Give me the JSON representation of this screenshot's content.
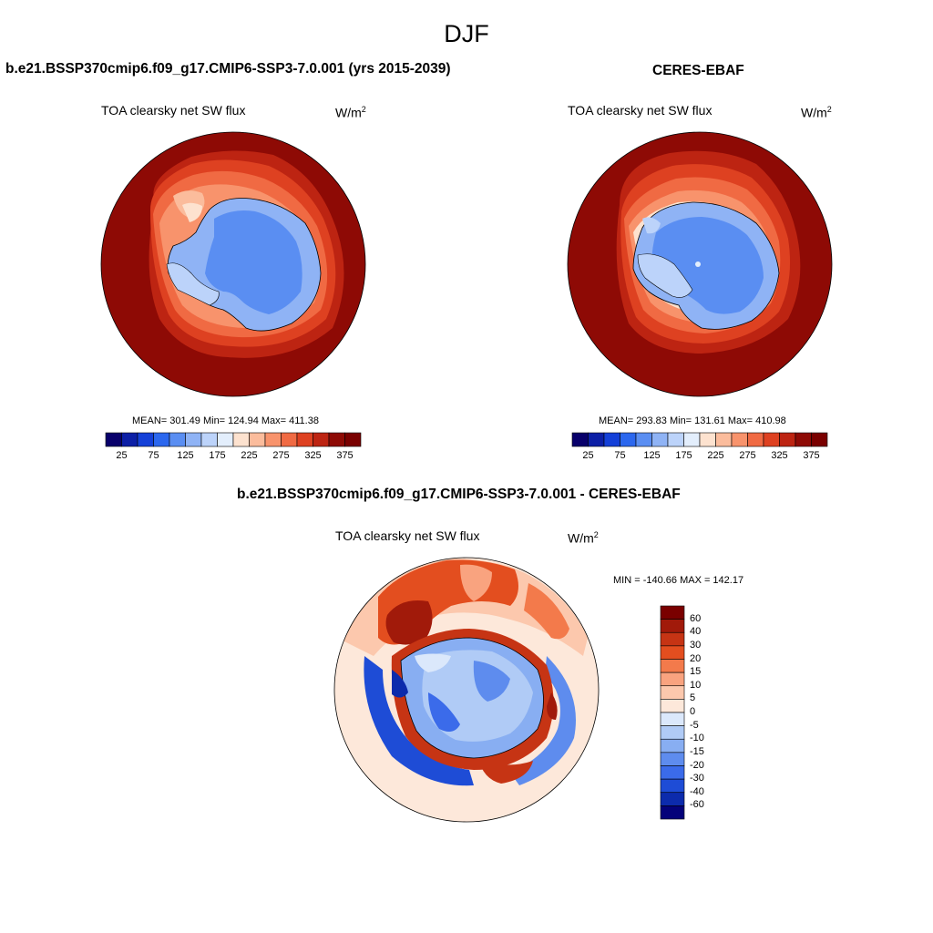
{
  "page": {
    "title": "DJF"
  },
  "panels": {
    "model": {
      "title": "b.e21.BSSP370cmip6.f09_g17.CMIP6-SSP3-7.0.001 (yrs 2015-2039)",
      "variable": "TOA clearsky net SW flux",
      "units_base": "W/m",
      "units_exp": "2",
      "stats": "MEAN= 301.49  Min= 124.94  Max= 411.38"
    },
    "obs": {
      "title": "CERES-EBAF",
      "variable": "TOA clearsky net SW flux",
      "units_base": "W/m",
      "units_exp": "2",
      "stats": "MEAN= 293.83  Min= 131.61  Max= 410.98"
    },
    "diff": {
      "title": "b.e21.BSSP370cmip6.f09_g17.CMIP6-SSP3-7.0.001 - CERES-EBAF",
      "variable": "TOA clearsky net SW flux",
      "units_base": "W/m",
      "units_exp": "2",
      "stats": "MIN = -140.66 MAX = 142.17"
    }
  },
  "chart_data": [
    {
      "type": "map",
      "projection": "south polar stereographic",
      "title": "b.e21.BSSP370cmip6.f09_g17.CMIP6-SSP3-7.0.001 (yrs 2015-2039)",
      "variable": "TOA clearsky net SW flux",
      "units": "W/m2",
      "mean": 301.49,
      "min": 124.94,
      "max": 411.38,
      "colorbar": {
        "levels": [
          25,
          50,
          75,
          100,
          125,
          150,
          175,
          200,
          225,
          250,
          275,
          300,
          325,
          350,
          375
        ],
        "tick_labels": [
          "25",
          "75",
          "125",
          "175",
          "225",
          "275",
          "325",
          "375"
        ]
      }
    },
    {
      "type": "map",
      "projection": "south polar stereographic",
      "title": "CERES-EBAF",
      "variable": "TOA clearsky net SW flux",
      "units": "W/m2",
      "mean": 293.83,
      "min": 131.61,
      "max": 410.98,
      "colorbar": {
        "levels": [
          25,
          50,
          75,
          100,
          125,
          150,
          175,
          200,
          225,
          250,
          275,
          300,
          325,
          350,
          375
        ],
        "tick_labels": [
          "25",
          "75",
          "125",
          "175",
          "225",
          "275",
          "325",
          "375"
        ]
      }
    },
    {
      "type": "map",
      "projection": "south polar stereographic",
      "title": "b.e21.BSSP370cmip6.f09_g17.CMIP6-SSP3-7.0.001 - CERES-EBAF",
      "variable": "TOA clearsky net SW flux",
      "units": "W/m2",
      "min": -140.66,
      "max": 142.17,
      "colorbar": {
        "levels": [
          60,
          40,
          30,
          20,
          15,
          10,
          5,
          0,
          -5,
          -10,
          -15,
          -20,
          -30,
          -40,
          -60
        ],
        "tick_labels": [
          "60",
          "40",
          "30",
          "20",
          "15",
          "10",
          "5",
          "0",
          "-5",
          "-10",
          "-15",
          "-20",
          "-30",
          "-40",
          "-60"
        ]
      }
    }
  ],
  "palettes": {
    "abs": [
      "#08006b",
      "#0c1fa6",
      "#1440d8",
      "#2b67ee",
      "#5a8ef2",
      "#8fb3f5",
      "#bcd3fa",
      "#e3eefc",
      "#fde2cf",
      "#fbbc9c",
      "#f8936c",
      "#f06a43",
      "#de4121",
      "#bd2412",
      "#8e0a05",
      "#7a0000"
    ],
    "diff": [
      "#7a0000",
      "#a11a0a",
      "#c63414",
      "#e34e1f",
      "#f37a4b",
      "#f9a37f",
      "#fcc8ad",
      "#fde8da",
      "#dbe8fb",
      "#b0cbf6",
      "#88aef2",
      "#5e8cee",
      "#3b6bea",
      "#1e4cd6",
      "#0c2bac",
      "#04027a"
    ]
  }
}
